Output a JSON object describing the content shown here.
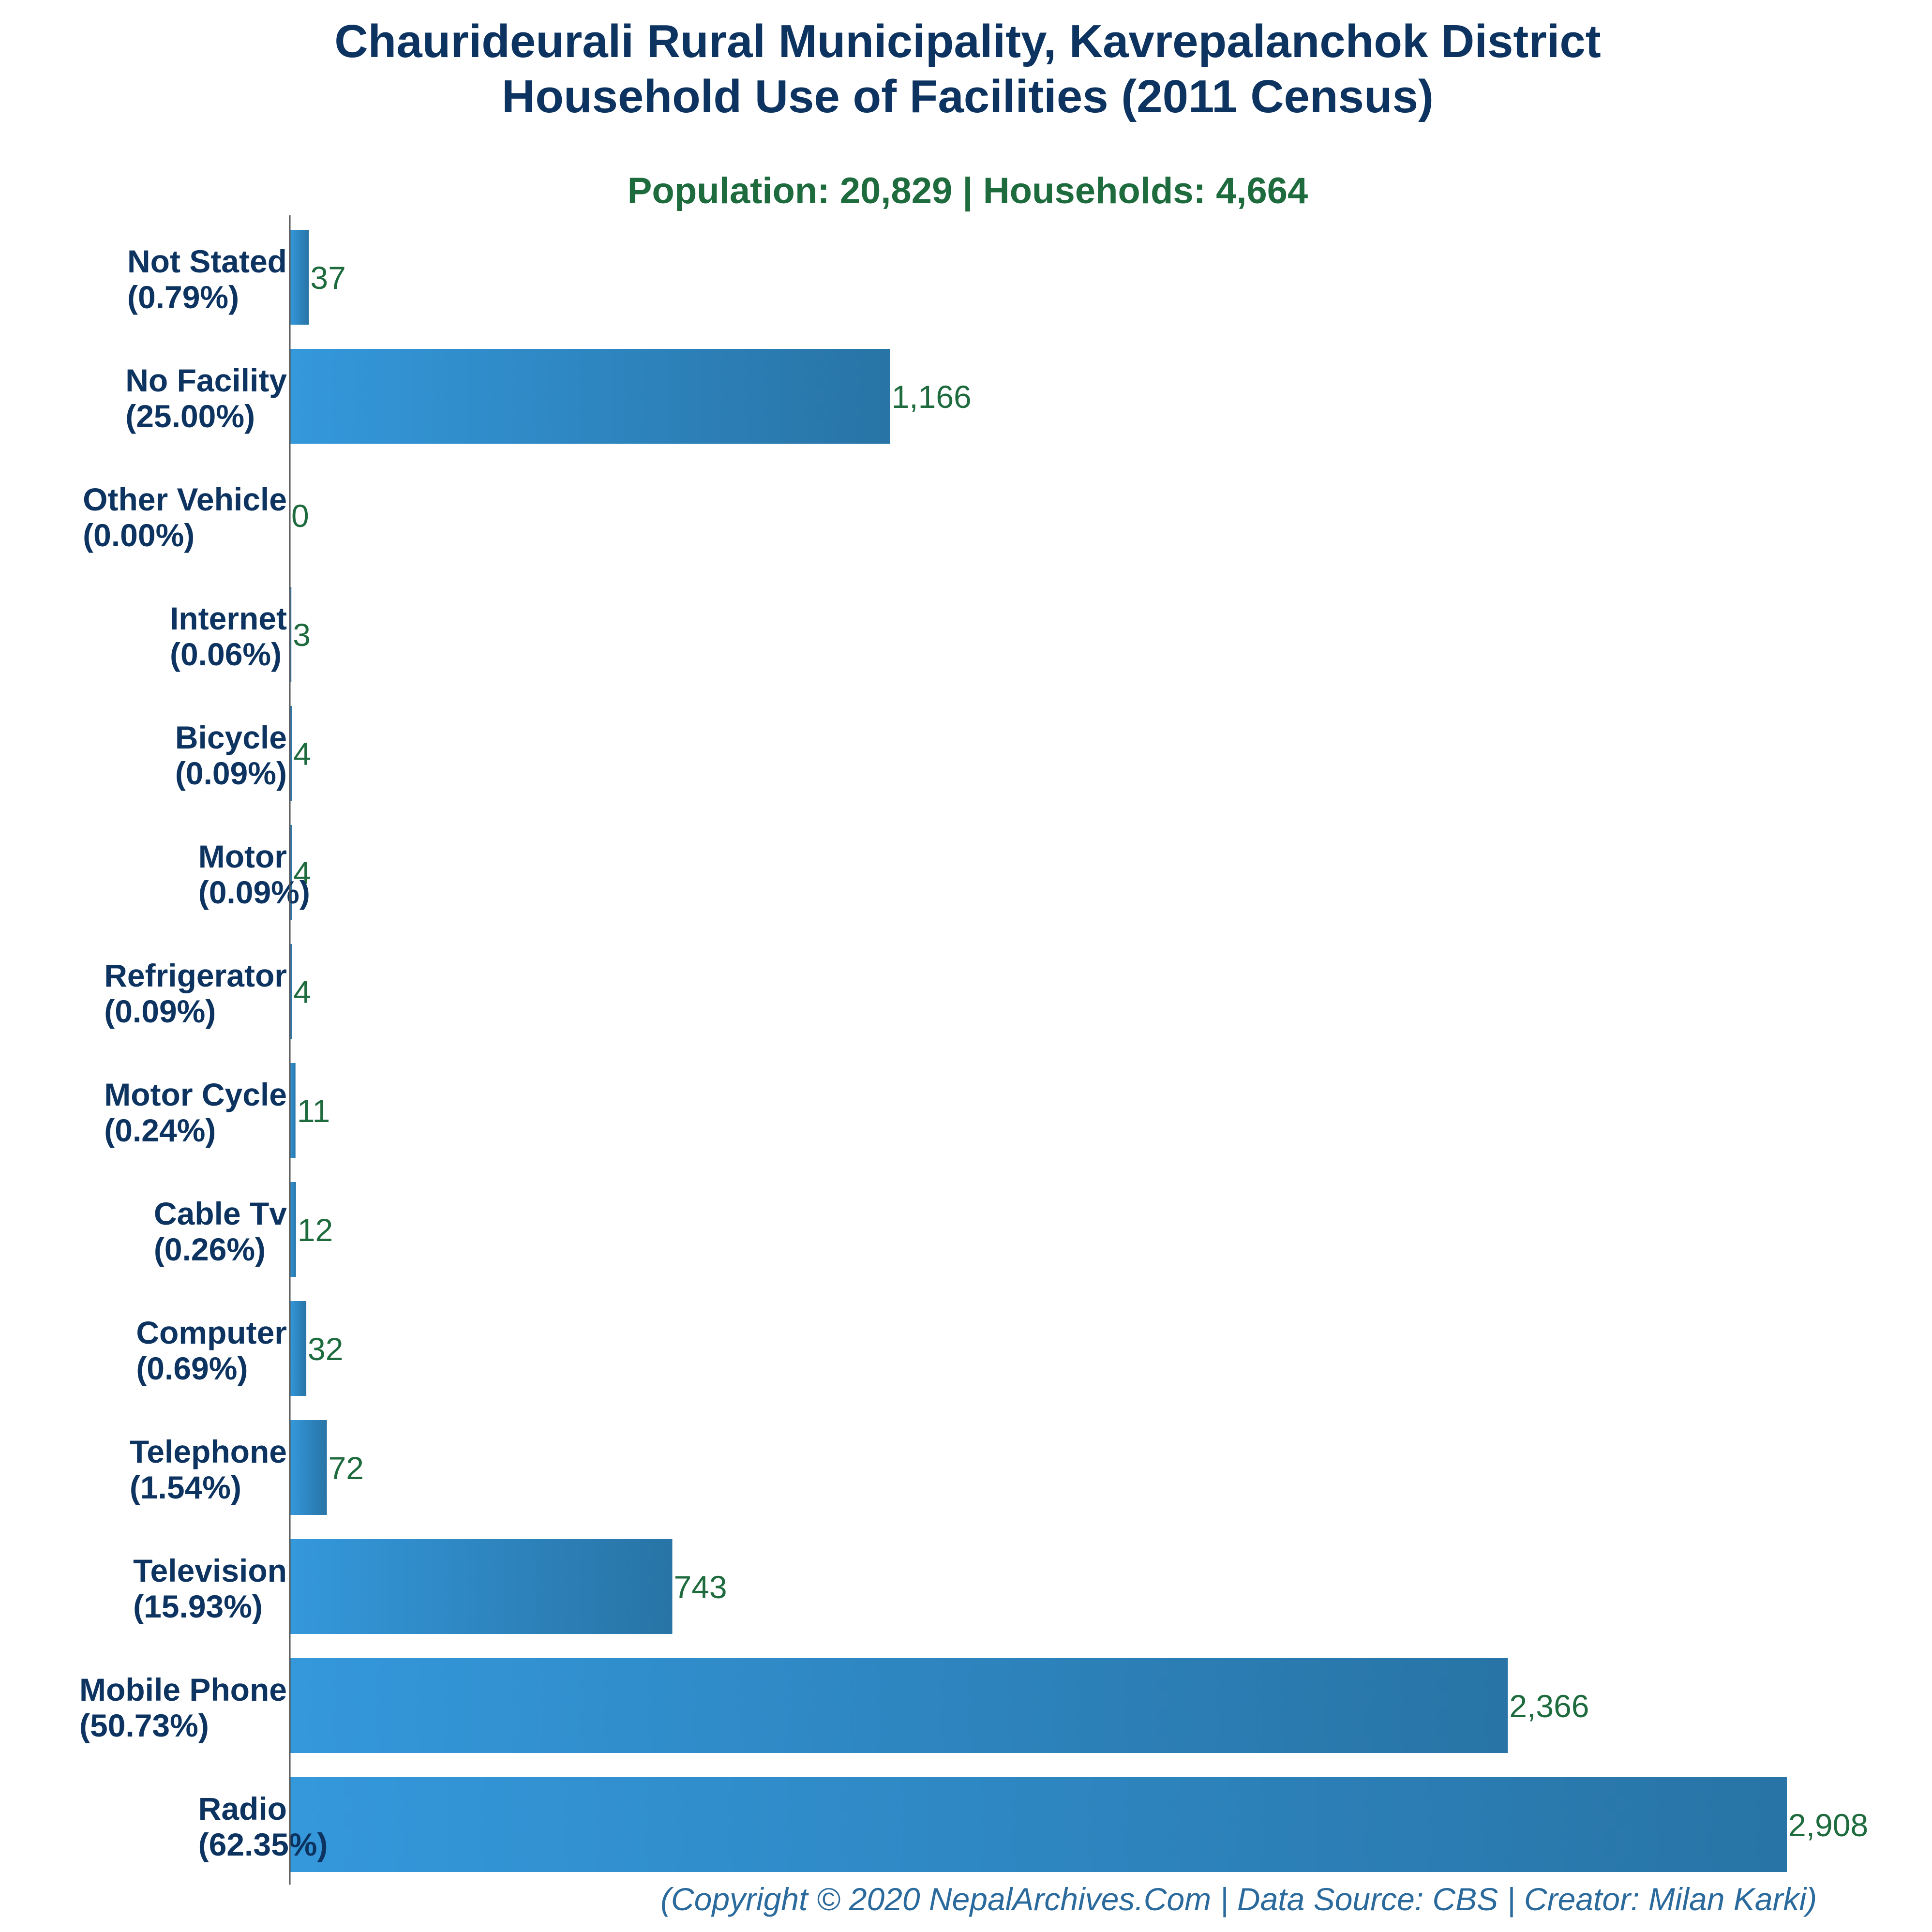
{
  "chart_data": {
    "type": "bar",
    "orientation": "horizontal",
    "title_line1": "Chaurideurali Rural Municipality, Kavrepalanchok District",
    "title_line2": "Household Use of Facilities (2011 Census)",
    "subtitle": "Population: 20,829 | Households: 4,664",
    "footer": "(Copyright © 2020 NepalArchives.Com | Data Source: CBS | Creator: Milan Karki)",
    "categories": [
      "Not Stated",
      "No Facility",
      "Other Vehicle",
      "Internet",
      "Bicycle",
      "Motor",
      "Refrigerator",
      "Motor Cycle",
      "Cable Tv",
      "Computer",
      "Telephone",
      "Television",
      "Mobile Phone",
      "Radio"
    ],
    "percent_labels": [
      "(0.79%)",
      "(25.00%)",
      "(0.00%)",
      "(0.06%)",
      "(0.09%)",
      "(0.09%)",
      "(0.09%)",
      "(0.24%)",
      "(0.26%)",
      "(0.69%)",
      "(1.54%)",
      "(15.93%)",
      "(50.73%)",
      "(62.35%)"
    ],
    "values": [
      37,
      1166,
      0,
      3,
      4,
      4,
      4,
      11,
      12,
      32,
      72,
      743,
      2366,
      2908
    ],
    "value_labels": [
      "37",
      "1,166",
      "0",
      "3",
      "4",
      "4",
      "4",
      "11",
      "12",
      "32",
      "72",
      "743",
      "2,366",
      "2,908"
    ],
    "xlim": [
      0,
      2908
    ],
    "grid": false,
    "legend": "none",
    "colors": {
      "bar_start": "#3498db",
      "bar_end": "#2874a6",
      "title": "#0d3461",
      "subtitle": "#1e6b3e",
      "value_label": "#1e6b3e",
      "category_label": "#0d3461",
      "footer": "#2a6a9c",
      "axis": "#555555"
    }
  }
}
